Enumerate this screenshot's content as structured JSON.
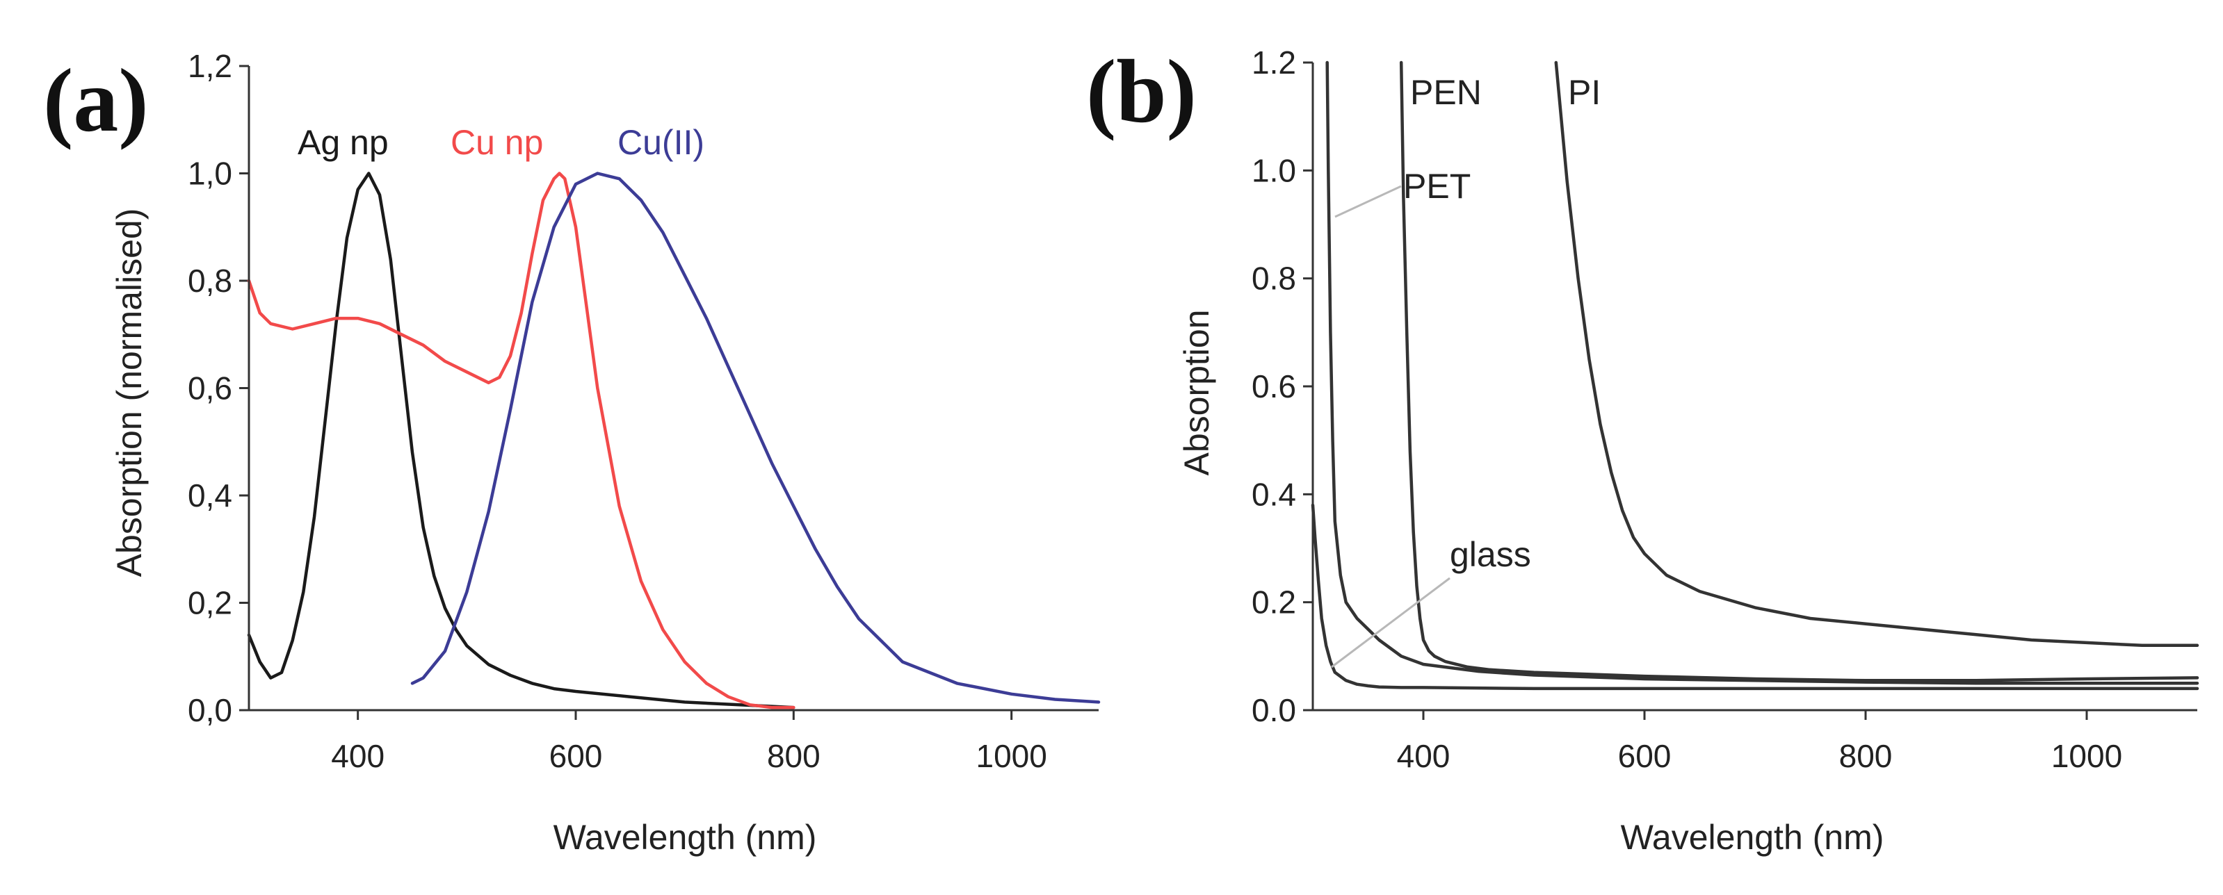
{
  "chart_data": [
    {
      "panel_label": "(a)",
      "type": "line",
      "xlabel": "Wavelength (nm)",
      "ylabel": "Absorption (normalised)",
      "xlim": [
        300,
        1080
      ],
      "ylim": [
        0,
        1.2
      ],
      "xticks": [
        400,
        600,
        800,
        1000
      ],
      "xtick_labels": [
        "400",
        "600",
        "800",
        "1000"
      ],
      "yticks": [
        0,
        0.2,
        0.4,
        0.6,
        0.8,
        1.0,
        1.2
      ],
      "ytick_labels": [
        "0,0",
        "0,2",
        "0,4",
        "0,6",
        "0,8",
        "1,0",
        "1,2"
      ],
      "series": [
        {
          "name": "Ag np",
          "color": "#1a1a1a",
          "x": [
            300,
            310,
            320,
            330,
            340,
            350,
            360,
            370,
            380,
            390,
            400,
            410,
            420,
            430,
            440,
            450,
            460,
            470,
            480,
            490,
            500,
            520,
            540,
            560,
            580,
            600,
            650,
            700,
            750,
            800
          ],
          "y": [
            0.14,
            0.09,
            0.06,
            0.07,
            0.13,
            0.22,
            0.36,
            0.54,
            0.72,
            0.88,
            0.97,
            1.0,
            0.96,
            0.84,
            0.66,
            0.48,
            0.34,
            0.25,
            0.19,
            0.15,
            0.12,
            0.085,
            0.065,
            0.05,
            0.04,
            0.035,
            0.025,
            0.015,
            0.01,
            0.005
          ]
        },
        {
          "name": "Cu np",
          "color": "#f24a4a",
          "x": [
            300,
            310,
            320,
            340,
            360,
            380,
            400,
            420,
            440,
            460,
            480,
            500,
            520,
            530,
            540,
            550,
            560,
            570,
            580,
            585,
            590,
            600,
            610,
            620,
            640,
            660,
            680,
            700,
            720,
            740,
            760,
            780,
            800
          ],
          "y": [
            0.8,
            0.74,
            0.72,
            0.71,
            0.72,
            0.73,
            0.73,
            0.72,
            0.7,
            0.68,
            0.65,
            0.63,
            0.61,
            0.62,
            0.66,
            0.74,
            0.85,
            0.95,
            0.99,
            1.0,
            0.99,
            0.9,
            0.75,
            0.6,
            0.38,
            0.24,
            0.15,
            0.09,
            0.05,
            0.025,
            0.01,
            0.005,
            0.005
          ]
        },
        {
          "name": "Cu(II)",
          "color": "#3c3c96",
          "x": [
            450,
            460,
            480,
            500,
            520,
            540,
            560,
            580,
            600,
            620,
            640,
            660,
            680,
            700,
            720,
            740,
            760,
            780,
            800,
            820,
            840,
            860,
            880,
            900,
            950,
            1000,
            1040,
            1080
          ],
          "y": [
            0.05,
            0.06,
            0.11,
            0.22,
            0.37,
            0.56,
            0.76,
            0.9,
            0.98,
            1.0,
            0.99,
            0.95,
            0.89,
            0.81,
            0.73,
            0.64,
            0.55,
            0.46,
            0.38,
            0.3,
            0.23,
            0.17,
            0.13,
            0.09,
            0.05,
            0.03,
            0.02,
            0.015
          ]
        }
      ]
    },
    {
      "panel_label": "(b)",
      "type": "line",
      "xlabel": "Wavelength (nm)",
      "ylabel": "Absorption",
      "xlim": [
        300,
        1100
      ],
      "ylim": [
        0,
        1.2
      ],
      "xticks": [
        400,
        600,
        800,
        1000
      ],
      "xtick_labels": [
        "400",
        "600",
        "800",
        "1000"
      ],
      "yticks": [
        0,
        0.2,
        0.4,
        0.6,
        0.8,
        1.0,
        1.2
      ],
      "ytick_labels": [
        "0.0",
        "0.2",
        "0.4",
        "0.6",
        "0.8",
        "1.0",
        "1.2"
      ],
      "series": [
        {
          "name": "PET",
          "color": "#333333",
          "x": [
            313,
            314,
            316,
            318,
            320,
            325,
            330,
            340,
            350,
            360,
            380,
            400,
            450,
            500,
            600,
            700,
            800,
            900,
            1000,
            1100
          ],
          "y": [
            1.2,
            1.0,
            0.7,
            0.5,
            0.35,
            0.25,
            0.2,
            0.17,
            0.15,
            0.13,
            0.1,
            0.085,
            0.072,
            0.065,
            0.058,
            0.055,
            0.052,
            0.05,
            0.05,
            0.05
          ]
        },
        {
          "name": "PEN",
          "color": "#333333",
          "x": [
            380,
            382,
            385,
            388,
            391,
            394,
            397,
            400,
            405,
            410,
            420,
            440,
            460,
            500,
            600,
            700,
            800,
            900,
            1000,
            1100
          ],
          "y": [
            1.2,
            0.95,
            0.7,
            0.48,
            0.33,
            0.23,
            0.17,
            0.13,
            0.11,
            0.1,
            0.09,
            0.08,
            0.075,
            0.07,
            0.063,
            0.058,
            0.055,
            0.055,
            0.058,
            0.06
          ]
        },
        {
          "name": "PI",
          "color": "#333333",
          "x": [
            520,
            530,
            540,
            550,
            560,
            570,
            580,
            590,
            600,
            620,
            650,
            700,
            750,
            800,
            850,
            900,
            950,
            1000,
            1050,
            1100
          ],
          "y": [
            1.2,
            0.98,
            0.8,
            0.65,
            0.53,
            0.44,
            0.37,
            0.32,
            0.29,
            0.25,
            0.22,
            0.19,
            0.17,
            0.16,
            0.15,
            0.14,
            0.13,
            0.125,
            0.12,
            0.12
          ]
        },
        {
          "name": "glass",
          "color": "#333333",
          "x": [
            300,
            302,
            305,
            308,
            312,
            316,
            320,
            330,
            340,
            350,
            360,
            380,
            400,
            500,
            600,
            700,
            800,
            900,
            1000,
            1100
          ],
          "y": [
            0.38,
            0.32,
            0.24,
            0.17,
            0.12,
            0.09,
            0.07,
            0.055,
            0.048,
            0.045,
            0.043,
            0.042,
            0.042,
            0.04,
            0.04,
            0.04,
            0.04,
            0.04,
            0.04,
            0.04
          ]
        }
      ]
    }
  ]
}
